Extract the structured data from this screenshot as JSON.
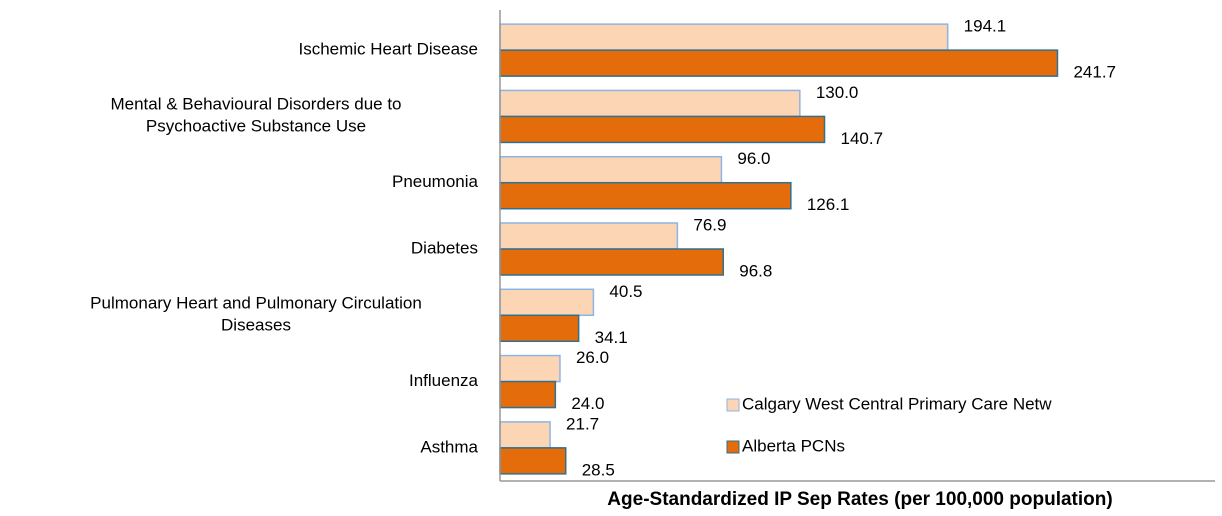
{
  "chart_data": {
    "type": "hbar",
    "x_label": "Age-Standardized IP Sep Rates (per 100,000 population)",
    "categories": [
      "Ischemic Heart Disease",
      "Mental & Behavioural Disorders due to\nPsychoactive Substance Use",
      "Pneumonia",
      "Diabetes",
      "Pulmonary Heart and Pulmonary Circulation\nDiseases",
      "Influenza",
      "Asthma"
    ],
    "series": [
      {
        "name": "Calgary West Central Primary Care Netw",
        "color": "#fcd5b5",
        "edge": "#8eb4e3",
        "values": [
          194.1,
          130.0,
          96.0,
          76.9,
          40.5,
          26.0,
          21.7
        ],
        "value_labels": [
          "194.1",
          "130.0",
          "96.0",
          "76.9",
          "40.5",
          "26.0",
          "21.7"
        ]
      },
      {
        "name": "Alberta PCNs",
        "color": "#e46c0a",
        "edge": "#31708f",
        "values": [
          241.7,
          140.7,
          126.1,
          96.8,
          34.1,
          24.0,
          28.5
        ],
        "value_labels": [
          "241.7",
          "140.7",
          "126.1",
          "96.8",
          "34.1",
          "24.0",
          "28.5"
        ]
      }
    ],
    "xlim": [
      0,
      310
    ]
  }
}
